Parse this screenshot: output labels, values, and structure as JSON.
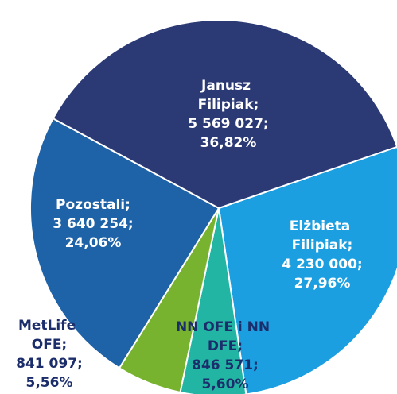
{
  "chart_data": {
    "type": "pie",
    "categories": [
      "Elżbieta Filipiak;",
      "NN OFE i NN DFE;",
      "MetLife OFE;",
      "Pozostali;",
      "Janusz Filipiak;"
    ],
    "values": [
      27.96,
      5.6,
      5.56,
      24.06,
      36.82
    ],
    "value_labels": [
      "27,96%",
      "5,60%",
      "5,56%",
      "24,06%",
      "36,82%"
    ],
    "shares": [
      4230000,
      846571,
      841097,
      3640254,
      5569027
    ],
    "share_labels": [
      "4 230 000;",
      "846 571;",
      "841 097;",
      "3 640 254;",
      "5 569 027;"
    ],
    "colors": [
      "#1b9fe0",
      "#22b5a4",
      "#78b330",
      "#1e62a8",
      "#2b3a75"
    ]
  }
}
